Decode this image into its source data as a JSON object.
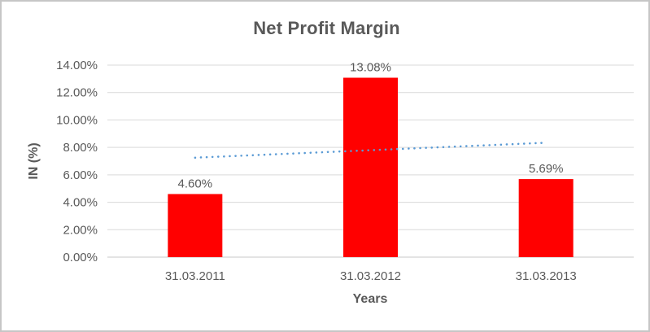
{
  "chart_data": {
    "type": "bar",
    "title": "Net Profit Margin",
    "xlabel": "Years",
    "ylabel": "IN (%)",
    "categories": [
      "31.03.2011",
      "31.03.2012",
      "31.03.2013"
    ],
    "values": [
      4.6,
      13.08,
      5.69
    ],
    "data_labels": [
      "4.60%",
      "13.08%",
      "5.69%"
    ],
    "ylim": [
      0,
      14
    ],
    "ytick_step": 2,
    "ytick_labels": [
      "0.00%",
      "2.00%",
      "4.00%",
      "6.00%",
      "8.00%",
      "10.00%",
      "12.00%",
      "14.00%"
    ],
    "grid": true,
    "legend": "none",
    "bar_color": "#ff0000",
    "trendline": {
      "type": "linear",
      "style": "dotted",
      "color": "#5b9bd5",
      "start_value": 7.25,
      "end_value": 8.34
    },
    "colors": {
      "title_text": "#595959",
      "axis_text": "#595959",
      "gridline": "#d9d9d9",
      "axis_line": "#c9c9c9",
      "frame_border": "#c6c6c6",
      "background": "#ffffff"
    }
  }
}
